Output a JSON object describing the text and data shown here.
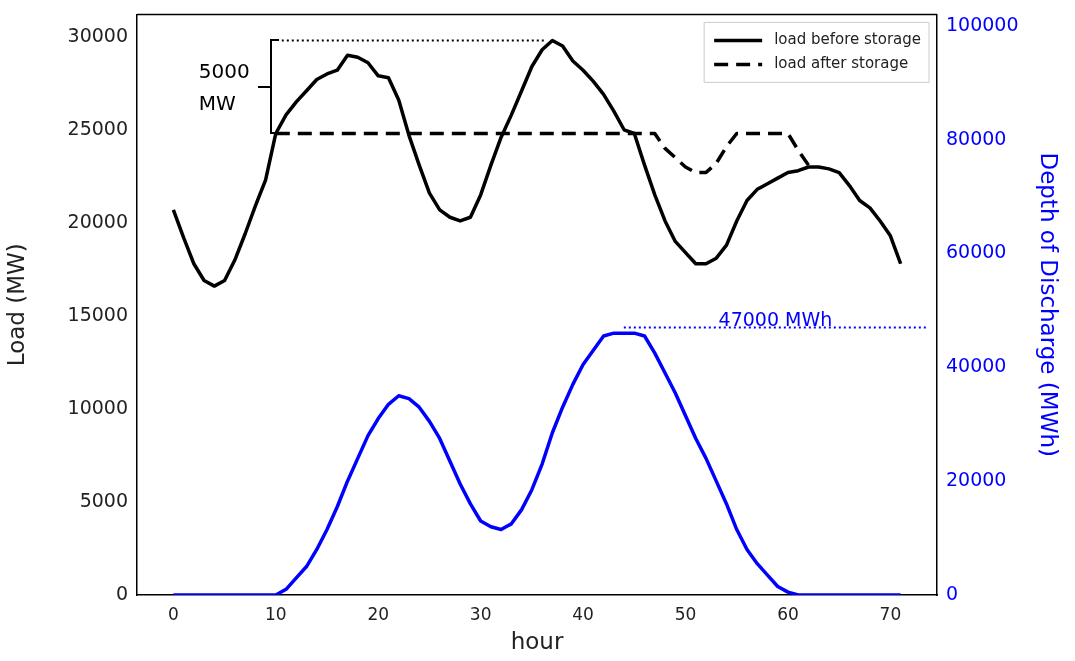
{
  "chart_data": {
    "type": "line",
    "xlabel": "hour",
    "ylabel": "Load (MW)",
    "y2label": "Depth of Discharge (MWh)",
    "xlim": [
      -3.55,
      74.55
    ],
    "xticks": [
      0,
      10,
      20,
      30,
      40,
      50,
      60,
      70
    ],
    "ylim": [
      0,
      31200
    ],
    "yticks": [
      0,
      5000,
      10000,
      15000,
      20000,
      25000,
      30000
    ],
    "y2lim": [
      0,
      102000
    ],
    "y2ticks": [
      0,
      20000,
      40000,
      60000,
      80000,
      100000
    ],
    "legend": "top right",
    "grid": false,
    "series": [
      {
        "name": "load before storage",
        "color": "#000000",
        "line_style": "solid",
        "x": [
          0,
          1,
          2,
          3,
          4,
          5,
          6,
          7,
          8,
          9,
          10,
          11,
          12,
          13,
          14,
          15,
          16,
          17,
          18,
          19,
          20,
          21,
          22,
          23,
          24,
          25,
          26,
          27,
          28,
          29,
          30,
          31,
          32,
          33,
          34,
          35,
          36,
          37,
          38,
          39,
          40,
          41,
          42,
          43,
          44,
          45,
          46,
          47,
          48,
          49,
          50,
          51,
          52,
          53,
          54,
          55,
          56,
          57,
          58,
          59,
          60,
          61,
          62,
          63,
          64,
          65,
          66,
          67,
          68,
          69,
          70,
          71
        ],
        "values": [
          20700,
          19200,
          17800,
          16900,
          16600,
          16900,
          18000,
          19400,
          20900,
          22300,
          24800,
          25800,
          26500,
          27100,
          27700,
          28000,
          28200,
          29000,
          28900,
          28600,
          27900,
          27800,
          26600,
          24700,
          23100,
          21600,
          20700,
          20300,
          20100,
          20300,
          21500,
          23100,
          24600,
          25800,
          27100,
          28400,
          29300,
          29800,
          29500,
          28700,
          28200,
          27600,
          26900,
          26000,
          25000,
          24800,
          23100,
          21500,
          20100,
          19000,
          18400,
          17800,
          17800,
          18100,
          18800,
          20100,
          21200,
          21800,
          22100,
          22400,
          22700,
          22800,
          23000,
          23000,
          22900,
          22700,
          22000,
          21200,
          20800,
          20100,
          19300,
          17800
        ]
      },
      {
        "name": "load after storage",
        "color": "#000000",
        "line_style": "dashed",
        "x": [
          10,
          47,
          48,
          49,
          50,
          51,
          52,
          53,
          54,
          55,
          60,
          61,
          62
        ],
        "values": [
          24800,
          24800,
          24000,
          23500,
          23000,
          22700,
          22700,
          23200,
          24100,
          24800,
          24800,
          23900,
          23100
        ]
      },
      {
        "color": "#0000ff",
        "axis": "y2",
        "line_style": "solid",
        "x": [
          0,
          10,
          11,
          12,
          13,
          14,
          15,
          16,
          17,
          18,
          19,
          20,
          21,
          22,
          23,
          24,
          25,
          26,
          27,
          28,
          29,
          30,
          31,
          32,
          33,
          34,
          35,
          36,
          37,
          38,
          39,
          40,
          41,
          42,
          43,
          44,
          45,
          46,
          47,
          48,
          49,
          50,
          51,
          52,
          53,
          54,
          55,
          56,
          57,
          58,
          59,
          60,
          61,
          71
        ],
        "values": [
          0,
          0,
          1000,
          3000,
          5000,
          8000,
          11500,
          15500,
          20000,
          24000,
          28000,
          31000,
          33500,
          35000,
          34500,
          33000,
          30500,
          27500,
          23500,
          19500,
          16000,
          13000,
          12000,
          11500,
          12500,
          15000,
          18500,
          23000,
          28500,
          33000,
          37000,
          40500,
          43000,
          45500,
          46000,
          46000,
          46000,
          45500,
          42500,
          39000,
          35500,
          31500,
          27500,
          24000,
          20000,
          16000,
          11500,
          8000,
          5500,
          3500,
          1500,
          500,
          0,
          0
        ]
      }
    ],
    "ref_lines": [
      {
        "axis": "y",
        "value": 29800,
        "color": "#000000",
        "line_style": "dotted"
      },
      {
        "axis": "y2",
        "value": 47000,
        "label": "47000 MWh",
        "color": "#0000ff",
        "line_style": "dotted"
      }
    ],
    "annotations": [
      "5000 MW"
    ]
  }
}
